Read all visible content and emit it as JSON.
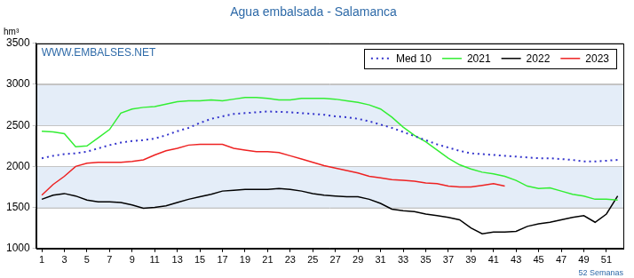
{
  "chart_data": {
    "type": "line",
    "title": "Agua embalsada - Salamanca",
    "y_label": "hm³",
    "x_label": "52 Semanas",
    "annotations": [
      {
        "text": "WWW.EMBALSES.NET"
      }
    ],
    "x": [
      1,
      2,
      3,
      4,
      5,
      6,
      7,
      8,
      9,
      10,
      11,
      12,
      13,
      14,
      15,
      16,
      17,
      18,
      19,
      20,
      21,
      22,
      23,
      24,
      25,
      26,
      27,
      28,
      29,
      30,
      31,
      32,
      33,
      34,
      35,
      36,
      37,
      38,
      39,
      40,
      41,
      42,
      43,
      44,
      45,
      46,
      47,
      48,
      49,
      50,
      51,
      52
    ],
    "xlim": [
      0.5,
      52.5
    ],
    "xticks": [
      1,
      3,
      5,
      7,
      9,
      11,
      13,
      15,
      17,
      19,
      21,
      23,
      25,
      27,
      29,
      31,
      33,
      35,
      37,
      39,
      41,
      43,
      45,
      47,
      49,
      51
    ],
    "ylim": [
      1000,
      3500
    ],
    "yticks": [
      1000,
      1500,
      2000,
      2500,
      3000,
      3500
    ],
    "grid": true,
    "legend": "top right",
    "series": [
      {
        "name": "Med 10",
        "color": "#3333cc",
        "line_style": "dotted",
        "marker": "none",
        "values": [
          2100,
          2130,
          2150,
          2160,
          2180,
          2220,
          2260,
          2290,
          2310,
          2320,
          2340,
          2380,
          2430,
          2470,
          2530,
          2580,
          2610,
          2640,
          2650,
          2660,
          2670,
          2665,
          2660,
          2650,
          2640,
          2630,
          2610,
          2600,
          2580,
          2550,
          2510,
          2470,
          2420,
          2370,
          2320,
          2270,
          2230,
          2190,
          2160,
          2150,
          2140,
          2130,
          2120,
          2110,
          2100,
          2100,
          2090,
          2080,
          2060,
          2060,
          2070,
          2080
        ]
      },
      {
        "name": "2021",
        "color": "#33ee33",
        "line_style": "solid",
        "marker": "none",
        "values": [
          2430,
          2420,
          2400,
          2240,
          2250,
          2350,
          2450,
          2650,
          2700,
          2720,
          2730,
          2760,
          2790,
          2800,
          2800,
          2810,
          2800,
          2820,
          2840,
          2840,
          2830,
          2810,
          2810,
          2830,
          2830,
          2830,
          2820,
          2800,
          2780,
          2750,
          2700,
          2600,
          2480,
          2380,
          2300,
          2200,
          2100,
          2020,
          1970,
          1930,
          1910,
          1880,
          1830,
          1760,
          1730,
          1740,
          1700,
          1660,
          1640,
          1600,
          1600,
          1590
        ]
      },
      {
        "name": "2022",
        "color": "#000000",
        "line_style": "solid",
        "marker": "none",
        "values": [
          1600,
          1650,
          1670,
          1640,
          1590,
          1570,
          1570,
          1560,
          1530,
          1490,
          1500,
          1520,
          1560,
          1600,
          1630,
          1660,
          1700,
          1710,
          1720,
          1720,
          1720,
          1730,
          1720,
          1700,
          1670,
          1650,
          1640,
          1630,
          1630,
          1600,
          1550,
          1480,
          1460,
          1450,
          1420,
          1400,
          1380,
          1350,
          1250,
          1180,
          1200,
          1200,
          1210,
          1270,
          1300,
          1320,
          1350,
          1380,
          1400,
          1320,
          1420,
          1640
        ]
      },
      {
        "name": "2023",
        "color": "#ee2222",
        "line_style": "solid",
        "marker": "none",
        "values": [
          1650,
          1780,
          1880,
          2000,
          2040,
          2050,
          2050,
          2050,
          2060,
          2080,
          2140,
          2190,
          2220,
          2260,
          2270,
          2270,
          2270,
          2220,
          2200,
          2180,
          2180,
          2170,
          2130,
          2090,
          2050,
          2010,
          1980,
          1950,
          1920,
          1880,
          1860,
          1840,
          1830,
          1820,
          1800,
          1790,
          1760,
          1750,
          1750,
          1770,
          1790,
          1760,
          null,
          null,
          null,
          null,
          null,
          null,
          null,
          null,
          null,
          null
        ]
      }
    ]
  }
}
